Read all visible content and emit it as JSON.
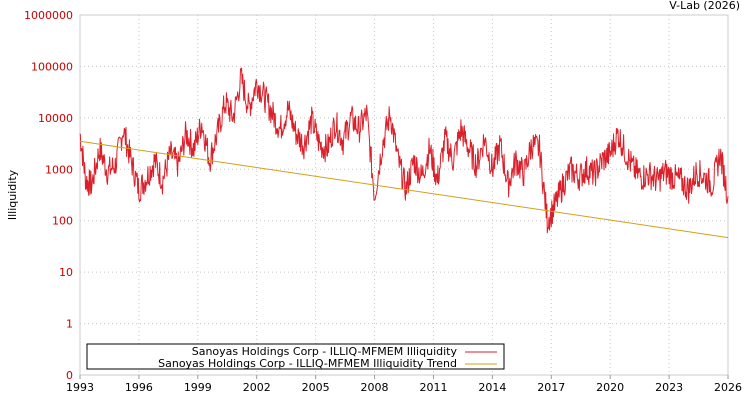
{
  "chart_data": {
    "type": "line",
    "title": "",
    "source_label": "V-Lab (2026)",
    "xlabel": "",
    "ylabel": "Illiquidity",
    "y_scale": "log",
    "ylim": [
      0,
      1000000
    ],
    "xlim": [
      1993,
      2026
    ],
    "x_ticks": [
      "1993",
      "1996",
      "1999",
      "2002",
      "2005",
      "2008",
      "2011",
      "2014",
      "2017",
      "2020",
      "2023",
      "2026"
    ],
    "y_ticks": [
      "0",
      "1",
      "10",
      "100",
      "1000",
      "10000",
      "100000",
      "1000000"
    ],
    "grid": true,
    "legend_position": "bottom-left",
    "series": [
      {
        "name": "Sanoyas Holdings Corp - ILLIQ-MFMEM Illiquidity",
        "color": "#d9202b",
        "x": [
          1993.0,
          1993.3,
          1993.6,
          1994.0,
          1994.4,
          1994.8,
          1995.2,
          1995.6,
          1996.0,
          1996.4,
          1996.8,
          1997.2,
          1997.6,
          1998.0,
          1998.4,
          1998.8,
          1999.2,
          1999.6,
          2000.0,
          2000.4,
          2000.8,
          2001.2,
          2001.6,
          2002.0,
          2002.4,
          2002.8,
          2003.2,
          2003.6,
          2004.0,
          2004.4,
          2004.8,
          2005.2,
          2005.6,
          2006.0,
          2006.4,
          2006.8,
          2007.2,
          2007.6,
          2008.0,
          2008.4,
          2008.8,
          2009.2,
          2009.6,
          2010.0,
          2010.4,
          2010.8,
          2011.2,
          2011.6,
          2012.0,
          2012.4,
          2012.8,
          2013.2,
          2013.6,
          2014.0,
          2014.4,
          2014.8,
          2015.2,
          2015.6,
          2016.0,
          2016.4,
          2016.8,
          2017.2,
          2017.6,
          2018.0,
          2018.4,
          2018.8,
          2019.2,
          2019.6,
          2020.0,
          2020.4,
          2020.8,
          2021.2,
          2021.6,
          2022.0,
          2022.4,
          2022.8,
          2023.2,
          2023.6,
          2024.0,
          2024.4,
          2024.8,
          2025.2,
          2025.6,
          2026.0
        ],
        "values": [
          5000,
          600,
          500,
          2500,
          900,
          1200,
          6000,
          1500,
          400,
          700,
          1500,
          600,
          2000,
          1200,
          5000,
          2500,
          8000,
          1500,
          5000,
          20000,
          10000,
          60000,
          15000,
          50000,
          25000,
          12000,
          6000,
          15000,
          5000,
          3000,
          9000,
          3000,
          2500,
          8000,
          3500,
          10000,
          6000,
          12000,
          300,
          3000,
          12000,
          1500,
          400,
          1500,
          700,
          2500,
          600,
          4000,
          1500,
          6000,
          2500,
          1200,
          4000,
          1000,
          3000,
          500,
          1500,
          800,
          3000,
          2500,
          100,
          200,
          500,
          1000,
          700,
          1000,
          800,
          1500,
          2000,
          5000,
          2000,
          1000,
          700,
          800,
          600,
          900,
          700,
          600,
          400,
          900,
          700,
          500,
          2000,
          300
        ]
      },
      {
        "name": "Sanoyas Holdings Corp - ILLIQ-MFMEM Illiquidity Trend",
        "color": "#d4a017",
        "x": [
          1993.0,
          2026.0
        ],
        "values": [
          3500,
          47
        ]
      }
    ]
  }
}
